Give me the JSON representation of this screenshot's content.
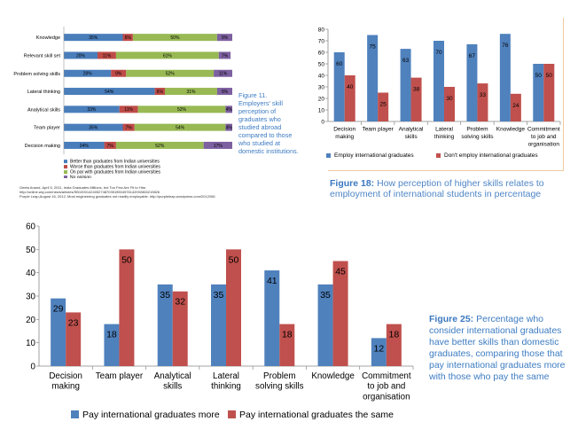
{
  "figure11": {
    "caption": "Figure 11. Employers' skill perception of graduates who studied abroad compared to those who studied at domestic institutions.",
    "chart_data": {
      "type": "bar",
      "orientation": "horizontal-stacked-percent",
      "categories": [
        "Knowledge",
        "Relevant skill set",
        "Problem solving skills",
        "Lateral thinking",
        "Analytical skills",
        "Team player",
        "Decision making"
      ],
      "series": [
        {
          "name": "Better than graduates from Indian universities",
          "color": "#4a7ebb",
          "values": [
            35,
            20,
            28,
            54,
            33,
            35,
            24
          ]
        },
        {
          "name": "Worse than graduates from Indian universities",
          "color": "#be4b48",
          "values": [
            6,
            11,
            9,
            6,
            11,
            7,
            7
          ]
        },
        {
          "name": "On par with graduates from Indian universities",
          "color": "#98b954",
          "values": [
            50,
            61,
            52,
            31,
            52,
            54,
            52
          ]
        },
        {
          "name": "No opinion",
          "color": "#7d60a0",
          "values": [
            9,
            7,
            11,
            9,
            4,
            4,
            17
          ]
        }
      ],
      "labels": [
        [
          "35%",
          "6%",
          "50%",
          "9%"
        ],
        [
          "20%",
          "11%",
          "61%",
          "7%"
        ],
        [
          "28%",
          "9%",
          "52%",
          "11%"
        ],
        [
          "54%",
          "6%",
          "31%",
          "9%"
        ],
        [
          "33%",
          "11%",
          "52%",
          "4%"
        ],
        [
          "35%",
          "7%",
          "54%",
          "4%"
        ],
        [
          "24%",
          "7%",
          "52%",
          "17%"
        ]
      ]
    },
    "footnotes": [
      "Geeta Anand, April 5, 2011, India Graduates Millions, but Too Few Are Fit to Hire.",
      "http://online.wsj.com/news/articles/SB10001424052748703515504576142092863219826",
      "Purple Leap,August 16, 2012, Most engineering graduates not readily employable. http://purpleleap.wordpress.com/2012/08/."
    ]
  },
  "figure18": {
    "caption_label": "Figure 18:",
    "caption_text": "How perception of higher skills relates to employment of international students in percentage",
    "chart_data": {
      "type": "bar",
      "categories": [
        [
          "Decision",
          "making"
        ],
        [
          "Team player"
        ],
        [
          "Analytical",
          "skills"
        ],
        [
          "Lateral",
          "thinking"
        ],
        [
          "Problem",
          "solving skills"
        ],
        [
          "Knowledge"
        ],
        [
          "Commitment",
          "to job and",
          "organisation"
        ]
      ],
      "series": [
        {
          "name": "Employ international graduates",
          "color": "#4f81bd",
          "values": [
            60,
            75,
            63,
            70,
            67,
            76,
            50
          ]
        },
        {
          "name": "Don't employ international graduates",
          "color": "#c0504d",
          "values": [
            40,
            25,
            38,
            30,
            33,
            24,
            50
          ]
        }
      ],
      "ylim": [
        0,
        80
      ],
      "yticks": [
        "0",
        "10",
        "20",
        "30",
        "40",
        "50",
        "60",
        "70",
        "80"
      ]
    }
  },
  "figure25": {
    "caption_label": "Figure 25:",
    "caption_text": "Percentage who consider international graduates have better skills than domestic graduates, comparing those that pay international graduates more with those who pay the same",
    "chart_data": {
      "type": "bar",
      "categories": [
        [
          "Decision",
          "making"
        ],
        [
          "Team player"
        ],
        [
          "Analytical",
          "skills"
        ],
        [
          "Lateral",
          "thinking"
        ],
        [
          "Problem",
          "solving skills"
        ],
        [
          "Knowledge"
        ],
        [
          "Commitment",
          "to job and",
          "organisation"
        ]
      ],
      "series": [
        {
          "name": "Pay international graduates more",
          "color": "#4f81bd",
          "values": [
            29,
            18,
            35,
            35,
            41,
            35,
            12
          ]
        },
        {
          "name": "Pay international graduates the same",
          "color": "#c0504d",
          "values": [
            23,
            50,
            32,
            50,
            18,
            45,
            18
          ]
        }
      ],
      "ylim": [
        0,
        60
      ],
      "yticks": [
        "0",
        "10",
        "20",
        "30",
        "40",
        "50",
        "60"
      ]
    }
  }
}
